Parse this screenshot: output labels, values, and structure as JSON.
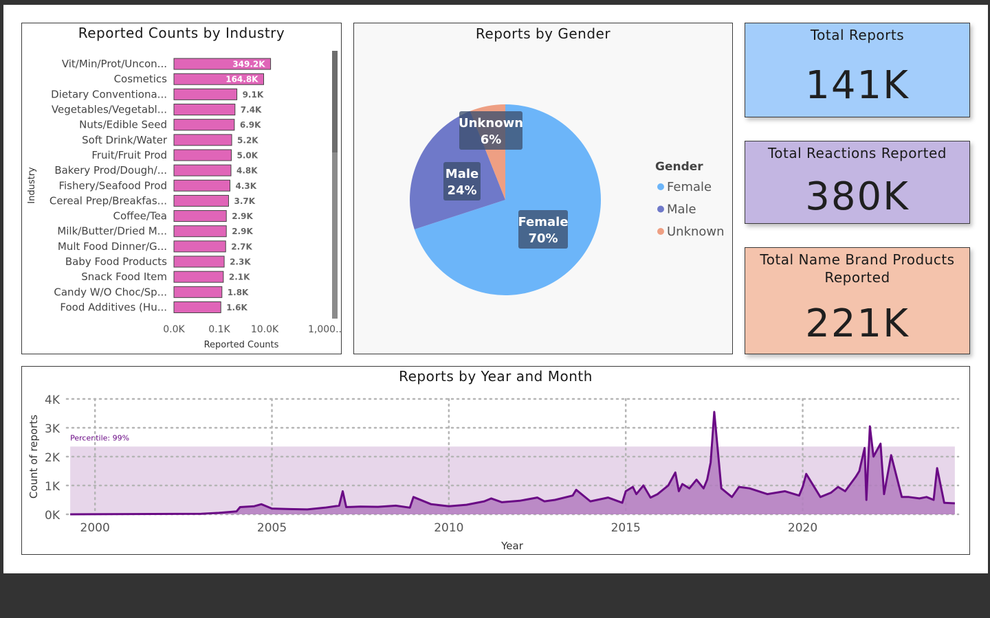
{
  "industry_chart_title": "Reported Counts by Industry",
  "gender_chart_title": "Reports by Gender",
  "timeline_chart_title": "Reports by Year and Month",
  "kpis": {
    "total_reports": {
      "label": "Total Reports",
      "value": "141K"
    },
    "total_reactions": {
      "label": "Total Reactions Reported",
      "value": "380K"
    },
    "total_brands": {
      "label": "Total Name Brand Products Reported",
      "value": "221K"
    }
  },
  "colors": {
    "bar": "#e065b8",
    "female": "#6cb5f9",
    "male": "#6f79c9",
    "unknown": "#ee9f83",
    "line": "#6a0a85",
    "area": "#b37cc0",
    "band": "#e7d6ea"
  },
  "chart_data": [
    {
      "type": "bar",
      "orientation": "horizontal",
      "title": "Reported Counts by Industry",
      "xlabel": "Reported Counts",
      "ylabel": "Industry",
      "x_scale": "log",
      "x_tick_labels": [
        "0.0K",
        "0.1K",
        "10.0K",
        "1,000...."
      ],
      "categories": [
        "Vit/Min/Prot/Uncon...",
        "Cosmetics",
        "Dietary Conventiona...",
        "Vegetables/Vegetabl...",
        "Nuts/Edible Seed",
        "Soft Drink/Water",
        "Fruit/Fruit Prod",
        "Bakery Prod/Dough/...",
        "Fishery/Seafood Prod",
        "Cereal Prep/Breakfas...",
        "Coffee/Tea",
        "Milk/Butter/Dried M...",
        "Mult Food Dinner/G...",
        "Baby Food Products",
        "Snack Food Item",
        "Candy W/O Choc/Sp...",
        "Food Additives (Hu..."
      ],
      "values": [
        349200,
        164800,
        9100,
        7400,
        6900,
        5200,
        5000,
        4800,
        4300,
        3700,
        2900,
        2900,
        2700,
        2300,
        2100,
        1800,
        1600
      ],
      "value_labels": [
        "349.2K",
        "164.8K",
        "9.1K",
        "7.4K",
        "6.9K",
        "5.2K",
        "5.0K",
        "4.8K",
        "4.3K",
        "3.7K",
        "2.9K",
        "2.9K",
        "2.7K",
        "2.3K",
        "2.1K",
        "1.8K",
        "1.6K"
      ]
    },
    {
      "type": "pie",
      "title": "Reports by Gender",
      "legend_title": "Gender",
      "legend_position": "right",
      "slices": [
        {
          "name": "Female",
          "value": 70,
          "label": "Female",
          "pct_label": "70%"
        },
        {
          "name": "Male",
          "value": 24,
          "label": "Male",
          "pct_label": "24%"
        },
        {
          "name": "Unknown",
          "value": 6,
          "label": "Unknown",
          "pct_label": "6%"
        }
      ]
    },
    {
      "type": "area",
      "title": "Reports by Year and Month",
      "xlabel": "Year",
      "ylabel": "Count of reports",
      "x_ticks": [
        "2000",
        "2005",
        "2010",
        "2015",
        "2020"
      ],
      "y_ticks": [
        "0K",
        "1K",
        "2K",
        "3K",
        "4K"
      ],
      "ylim": [
        0,
        4000
      ],
      "xlim": [
        1999.2,
        2024.4
      ],
      "grid": true,
      "band": {
        "label": "Percentile: 99%",
        "from": 0,
        "to": 2350
      },
      "x": [
        1999.3,
        2003.0,
        2003.5,
        2004.0,
        2004.1,
        2004.5,
        2004.7,
        2005.0,
        2005.5,
        2006.0,
        2006.5,
        2006.9,
        2007.0,
        2007.1,
        2007.5,
        2008.0,
        2008.5,
        2008.9,
        2009.0,
        2009.5,
        2010.0,
        2010.5,
        2011.0,
        2011.2,
        2011.5,
        2012.0,
        2012.5,
        2012.7,
        2013.0,
        2013.5,
        2013.6,
        2014.0,
        2014.5,
        2014.9,
        2015.0,
        2015.2,
        2015.3,
        2015.5,
        2015.7,
        2015.9,
        2016.2,
        2016.4,
        2016.5,
        2016.6,
        2016.8,
        2017.0,
        2017.2,
        2017.3,
        2017.4,
        2017.5,
        2017.7,
        2018.0,
        2018.2,
        2018.5,
        2019.0,
        2019.5,
        2019.9,
        2020.0,
        2020.1,
        2020.5,
        2020.8,
        2021.0,
        2021.2,
        2021.5,
        2021.6,
        2021.75,
        2021.8,
        2021.9,
        2022.0,
        2022.2,
        2022.3,
        2022.5,
        2022.8,
        2023.0,
        2023.3,
        2023.5,
        2023.7,
        2023.8,
        2024.0,
        2024.3
      ],
      "y": [
        0,
        20,
        50,
        100,
        250,
        280,
        350,
        200,
        180,
        170,
        230,
        300,
        800,
        250,
        270,
        260,
        300,
        230,
        600,
        350,
        280,
        330,
        450,
        550,
        420,
        470,
        580,
        450,
        500,
        650,
        850,
        450,
        580,
        400,
        800,
        950,
        700,
        1000,
        580,
        700,
        1000,
        1450,
        800,
        1050,
        900,
        1200,
        900,
        1200,
        1800,
        3550,
        900,
        600,
        950,
        900,
        700,
        800,
        650,
        950,
        1400,
        600,
        750,
        950,
        800,
        1300,
        1500,
        2300,
        500,
        3050,
        2000,
        2450,
        700,
        2050,
        600,
        600,
        550,
        600,
        500,
        1600,
        400,
        380
      ]
    }
  ]
}
